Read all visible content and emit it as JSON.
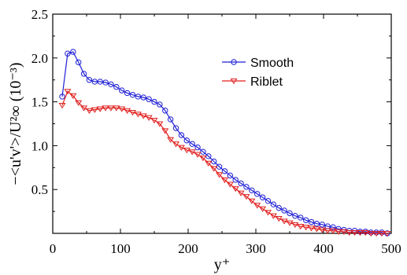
{
  "chart_data": {
    "type": "line",
    "title": "",
    "xlabel": "y⁺",
    "ylabel": "−<u'v'>/U²∞ (10⁻³)",
    "xlim": [
      0,
      500
    ],
    "ylim": [
      0,
      2.5
    ],
    "xticks": [
      0,
      100,
      200,
      300,
      400,
      500
    ],
    "yticks": [
      0.5,
      1.0,
      1.5,
      2.0,
      2.5
    ],
    "xtick_labels": [
      "0",
      "100",
      "200",
      "300",
      "400",
      "500"
    ],
    "ytick_labels": [
      "0.5",
      "1.0",
      "1.5",
      "2.0",
      "2.5"
    ],
    "grid": false,
    "legend_position": "upper-right",
    "series": [
      {
        "name": "Smooth",
        "color": "#1f1fd6",
        "marker": "circle",
        "x": [
          14,
          22,
          30,
          38,
          46,
          54,
          62,
          70,
          78,
          86,
          94,
          102,
          110,
          118,
          126,
          134,
          142,
          150,
          158,
          166,
          174,
          182,
          190,
          198,
          206,
          214,
          222,
          230,
          238,
          246,
          254,
          262,
          270,
          278,
          286,
          294,
          302,
          310,
          318,
          326,
          334,
          342,
          350,
          358,
          366,
          374,
          382,
          390,
          398,
          406,
          414,
          422,
          430,
          438,
          446,
          454,
          462,
          470,
          478,
          486,
          494
        ],
        "values": [
          1.56,
          2.05,
          2.07,
          1.95,
          1.82,
          1.75,
          1.73,
          1.73,
          1.72,
          1.7,
          1.67,
          1.63,
          1.6,
          1.58,
          1.56,
          1.55,
          1.53,
          1.5,
          1.47,
          1.4,
          1.3,
          1.2,
          1.12,
          1.06,
          1.02,
          0.98,
          0.93,
          0.88,
          0.82,
          0.76,
          0.71,
          0.66,
          0.61,
          0.57,
          0.53,
          0.49,
          0.45,
          0.41,
          0.37,
          0.33,
          0.29,
          0.26,
          0.23,
          0.2,
          0.18,
          0.15,
          0.13,
          0.11,
          0.1,
          0.08,
          0.07,
          0.05,
          0.04,
          0.03,
          0.03,
          0.02,
          0.02,
          0.01,
          0.01,
          0.01,
          0.0
        ]
      },
      {
        "name": "Riblet",
        "color": "#e01f1f",
        "marker": "triangle-down",
        "x": [
          14,
          22,
          30,
          38,
          46,
          54,
          62,
          70,
          78,
          86,
          94,
          102,
          110,
          118,
          126,
          134,
          142,
          150,
          158,
          166,
          174,
          182,
          190,
          198,
          206,
          214,
          222,
          230,
          238,
          246,
          254,
          262,
          270,
          278,
          286,
          294,
          302,
          310,
          318,
          326,
          334,
          342,
          350,
          358,
          366,
          374,
          382,
          390,
          398,
          406,
          414,
          422,
          430,
          438,
          446,
          454,
          462,
          470,
          478,
          486,
          494
        ],
        "values": [
          1.46,
          1.62,
          1.57,
          1.49,
          1.43,
          1.4,
          1.41,
          1.42,
          1.43,
          1.43,
          1.43,
          1.42,
          1.4,
          1.38,
          1.36,
          1.34,
          1.32,
          1.29,
          1.25,
          1.17,
          1.07,
          1.02,
          0.98,
          0.95,
          0.93,
          0.9,
          0.86,
          0.8,
          0.74,
          0.67,
          0.61,
          0.56,
          0.51,
          0.46,
          0.42,
          0.37,
          0.32,
          0.28,
          0.24,
          0.2,
          0.17,
          0.14,
          0.12,
          0.1,
          0.08,
          0.07,
          0.06,
          0.05,
          0.04,
          0.03,
          0.03,
          0.02,
          0.02,
          0.01,
          0.01,
          0.01,
          0.01,
          0.0,
          0.0,
          0.0,
          0.0
        ]
      }
    ]
  }
}
